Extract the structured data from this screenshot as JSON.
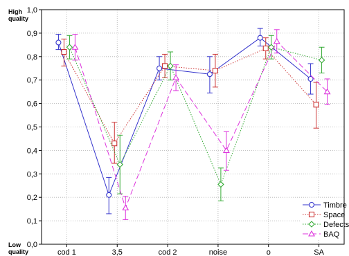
{
  "chart_data": {
    "type": "line",
    "categories": [
      "cod 1",
      "3,5",
      "cod 2",
      "noise",
      "o",
      "SA"
    ],
    "ylim": [
      0.0,
      1.0
    ],
    "yticks": [
      0.0,
      0.1,
      0.2,
      0.3,
      0.4,
      0.5,
      0.6,
      0.7,
      0.8,
      0.9,
      1.0
    ],
    "ytick_labels": [
      "0,0",
      "0,1",
      "0,2",
      "0,3",
      "0,4",
      "0,5",
      "0,6",
      "0,7",
      "0,8",
      "0,9",
      "1,0"
    ],
    "y_top_label_line1": "High",
    "y_top_label_line2": "quality",
    "y_bottom_label_line1": "Low",
    "y_bottom_label_line2": "quality",
    "grid": true,
    "legend_position": "bottom-right",
    "error_bars": true,
    "series": [
      {
        "name": "Timbre",
        "marker": "circle",
        "line_style": "solid",
        "color": "#3333cc",
        "values": [
          0.86,
          0.21,
          0.75,
          0.725,
          0.88,
          0.705
        ],
        "lower": [
          0.83,
          0.13,
          0.7,
          0.645,
          0.845,
          0.64
        ],
        "upper": [
          0.895,
          0.285,
          0.8,
          0.8,
          0.92,
          0.77
        ]
      },
      {
        "name": "Space",
        "marker": "square",
        "line_style": "dotted",
        "color": "#cc3333",
        "values": [
          0.82,
          0.43,
          0.76,
          0.74,
          0.835,
          0.595
        ],
        "lower": [
          0.76,
          0.345,
          0.71,
          0.67,
          0.79,
          0.495
        ],
        "upper": [
          0.875,
          0.52,
          0.81,
          0.81,
          0.88,
          0.69
        ]
      },
      {
        "name": "Defects",
        "marker": "diamond",
        "line_style": "dotted",
        "color": "#33aa33",
        "values": [
          0.84,
          0.34,
          0.76,
          0.255,
          0.84,
          0.785
        ],
        "lower": [
          0.79,
          0.215,
          0.7,
          0.185,
          0.79,
          0.73
        ],
        "upper": [
          0.89,
          0.465,
          0.82,
          0.325,
          0.89,
          0.84
        ]
      },
      {
        "name": "BAQ",
        "marker": "triangle",
        "line_style": "dashed",
        "color": "#dd33dd",
        "values": [
          0.84,
          0.155,
          0.71,
          0.4,
          0.865,
          0.65
        ],
        "lower": [
          0.785,
          0.105,
          0.655,
          0.315,
          0.815,
          0.595
        ],
        "upper": [
          0.895,
          0.205,
          0.765,
          0.48,
          0.915,
          0.705
        ]
      }
    ]
  }
}
